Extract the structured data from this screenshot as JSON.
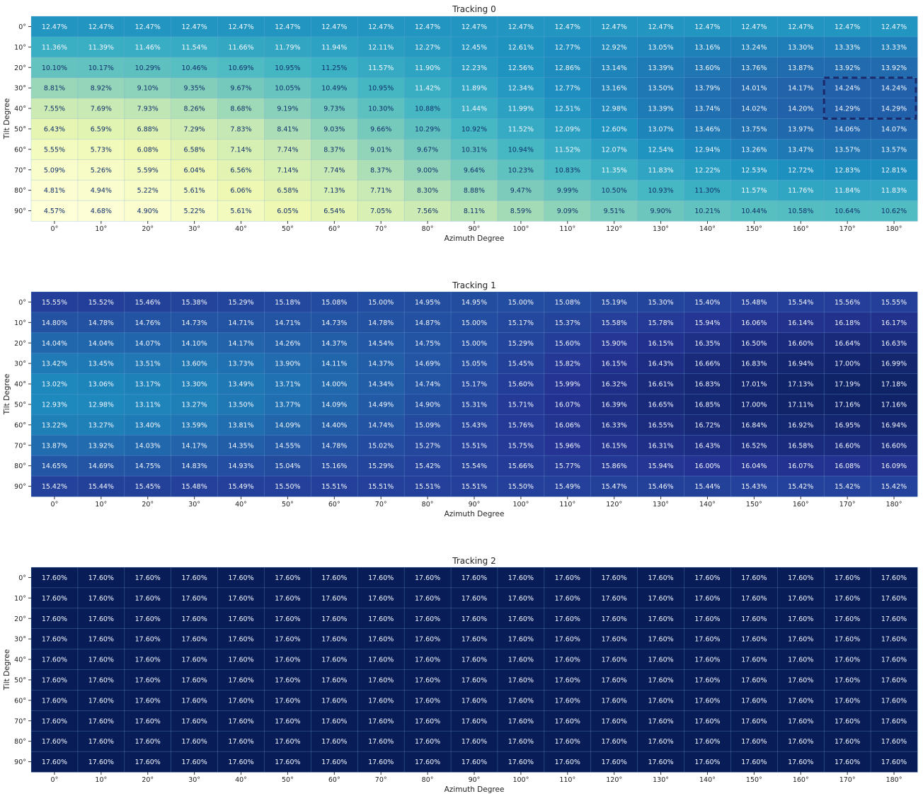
{
  "figure": {
    "x_ticks": [
      "0°",
      "10°",
      "20°",
      "30°",
      "40°",
      "50°",
      "60°",
      "70°",
      "80°",
      "90°",
      "100°",
      "110°",
      "120°",
      "130°",
      "140°",
      "150°",
      "160°",
      "170°",
      "180°"
    ],
    "y_ticks": [
      "0°",
      "10°",
      "20°",
      "30°",
      "40°",
      "50°",
      "60°",
      "70°",
      "80°",
      "90°"
    ]
  },
  "chart_data": [
    {
      "type": "heatmap",
      "title": "Tracking 0",
      "xlabel": "Azimuth Degree",
      "ylabel": "Tilt Degree",
      "unit": "%",
      "colormap": "YlGnBu",
      "color_range": [
        4.5,
        17.6
      ],
      "highlight": {
        "rows": [
          "30°",
          "40°"
        ],
        "cols": [
          "170°",
          "180°"
        ],
        "style": "dashed"
      },
      "x": [
        "0°",
        "10°",
        "20°",
        "30°",
        "40°",
        "50°",
        "60°",
        "70°",
        "80°",
        "90°",
        "100°",
        "110°",
        "120°",
        "130°",
        "140°",
        "150°",
        "160°",
        "170°",
        "180°"
      ],
      "y": [
        "0°",
        "10°",
        "20°",
        "30°",
        "40°",
        "50°",
        "60°",
        "70°",
        "80°",
        "90°"
      ],
      "values": [
        [
          12.47,
          12.47,
          12.47,
          12.47,
          12.47,
          12.47,
          12.47,
          12.47,
          12.47,
          12.47,
          12.47,
          12.47,
          12.47,
          12.47,
          12.47,
          12.47,
          12.47,
          12.47,
          12.47
        ],
        [
          11.36,
          11.39,
          11.46,
          11.54,
          11.66,
          11.79,
          11.94,
          12.11,
          12.27,
          12.45,
          12.61,
          12.77,
          12.92,
          13.05,
          13.16,
          13.24,
          13.3,
          13.33,
          13.33
        ],
        [
          10.1,
          10.17,
          10.29,
          10.46,
          10.69,
          10.95,
          11.25,
          11.57,
          11.9,
          12.23,
          12.56,
          12.86,
          13.14,
          13.39,
          13.6,
          13.76,
          13.87,
          13.92,
          13.92
        ],
        [
          8.81,
          8.92,
          9.1,
          9.35,
          9.67,
          10.05,
          10.49,
          10.95,
          11.42,
          11.89,
          12.34,
          12.77,
          13.16,
          13.5,
          13.79,
          14.01,
          14.17,
          14.24,
          14.24
        ],
        [
          7.55,
          7.69,
          7.93,
          8.26,
          8.68,
          9.19,
          9.73,
          10.3,
          10.88,
          11.44,
          11.99,
          12.51,
          12.98,
          13.39,
          13.74,
          14.02,
          14.2,
          14.29,
          14.29
        ],
        [
          6.43,
          6.59,
          6.88,
          7.29,
          7.83,
          8.41,
          9.03,
          9.66,
          10.29,
          10.92,
          11.52,
          12.09,
          12.6,
          13.07,
          13.46,
          13.75,
          13.97,
          14.06,
          14.07
        ],
        [
          5.55,
          5.73,
          6.08,
          6.58,
          7.14,
          7.74,
          8.37,
          9.01,
          9.67,
          10.31,
          10.94,
          11.52,
          12.07,
          12.54,
          12.94,
          13.26,
          13.47,
          13.57,
          13.57
        ],
        [
          5.09,
          5.26,
          5.59,
          6.04,
          6.56,
          7.14,
          7.74,
          8.37,
          9.0,
          9.64,
          10.23,
          10.83,
          11.35,
          11.83,
          12.22,
          12.53,
          12.72,
          12.83,
          12.81
        ],
        [
          4.81,
          4.94,
          5.22,
          5.61,
          6.06,
          6.58,
          7.13,
          7.71,
          8.3,
          8.88,
          9.47,
          9.99,
          10.5,
          10.93,
          11.3,
          11.57,
          11.76,
          11.84,
          11.83
        ],
        [
          4.57,
          4.68,
          4.9,
          5.22,
          5.61,
          6.05,
          6.54,
          7.05,
          7.56,
          8.11,
          8.59,
          9.09,
          9.51,
          9.9,
          10.21,
          10.44,
          10.58,
          10.64,
          10.62
        ]
      ]
    },
    {
      "type": "heatmap",
      "title": "Tracking 1",
      "xlabel": "Azimuth Degree",
      "ylabel": "Tilt Degree",
      "unit": "%",
      "colormap": "YlGnBu",
      "color_range": [
        4.5,
        17.6
      ],
      "x": [
        "0°",
        "10°",
        "20°",
        "30°",
        "40°",
        "50°",
        "60°",
        "70°",
        "80°",
        "90°",
        "100°",
        "110°",
        "120°",
        "130°",
        "140°",
        "150°",
        "160°",
        "170°",
        "180°"
      ],
      "y": [
        "0°",
        "10°",
        "20°",
        "30°",
        "40°",
        "50°",
        "60°",
        "70°",
        "80°",
        "90°"
      ],
      "values": [
        [
          15.55,
          15.52,
          15.46,
          15.38,
          15.29,
          15.18,
          15.08,
          15.0,
          14.95,
          14.95,
          15.0,
          15.08,
          15.19,
          15.3,
          15.4,
          15.48,
          15.54,
          15.56,
          15.55
        ],
        [
          14.8,
          14.78,
          14.76,
          14.73,
          14.71,
          14.71,
          14.73,
          14.78,
          14.87,
          15.0,
          15.17,
          15.37,
          15.58,
          15.78,
          15.94,
          16.06,
          16.14,
          16.18,
          16.17
        ],
        [
          14.04,
          14.04,
          14.07,
          14.1,
          14.17,
          14.26,
          14.37,
          14.54,
          14.75,
          15.0,
          15.29,
          15.6,
          15.9,
          16.15,
          16.35,
          16.5,
          16.6,
          16.64,
          16.63
        ],
        [
          13.42,
          13.45,
          13.51,
          13.6,
          13.73,
          13.9,
          14.11,
          14.37,
          14.69,
          15.05,
          15.45,
          15.82,
          16.15,
          16.43,
          16.66,
          16.83,
          16.94,
          17.0,
          16.99
        ],
        [
          13.02,
          13.06,
          13.17,
          13.3,
          13.49,
          13.71,
          14.0,
          14.34,
          14.74,
          15.17,
          15.6,
          15.99,
          16.32,
          16.61,
          16.83,
          17.01,
          17.13,
          17.19,
          17.18
        ],
        [
          12.93,
          12.98,
          13.11,
          13.27,
          13.5,
          13.77,
          14.09,
          14.49,
          14.9,
          15.31,
          15.71,
          16.07,
          16.39,
          16.65,
          16.85,
          17.0,
          17.11,
          17.16,
          17.16
        ],
        [
          13.22,
          13.27,
          13.4,
          13.59,
          13.81,
          14.09,
          14.4,
          14.74,
          15.09,
          15.43,
          15.76,
          16.06,
          16.33,
          16.55,
          16.72,
          16.84,
          16.92,
          16.95,
          16.94
        ],
        [
          13.87,
          13.92,
          14.03,
          14.17,
          14.35,
          14.55,
          14.78,
          15.02,
          15.27,
          15.51,
          15.75,
          15.96,
          16.15,
          16.31,
          16.43,
          16.52,
          16.58,
          16.6,
          16.6
        ],
        [
          14.65,
          14.69,
          14.75,
          14.83,
          14.93,
          15.04,
          15.16,
          15.29,
          15.42,
          15.54,
          15.66,
          15.77,
          15.86,
          15.94,
          16.0,
          16.04,
          16.07,
          16.08,
          16.09
        ],
        [
          15.42,
          15.44,
          15.45,
          15.48,
          15.49,
          15.5,
          15.51,
          15.51,
          15.51,
          15.51,
          15.5,
          15.49,
          15.47,
          15.46,
          15.44,
          15.43,
          15.42,
          15.42,
          15.42
        ]
      ]
    },
    {
      "type": "heatmap",
      "title": "Tracking 2",
      "xlabel": "Azimuth Degree",
      "ylabel": "Tilt Degree",
      "unit": "%",
      "colormap": "YlGnBu",
      "color_range": [
        4.5,
        17.6
      ],
      "x": [
        "0°",
        "10°",
        "20°",
        "30°",
        "40°",
        "50°",
        "60°",
        "70°",
        "80°",
        "90°",
        "100°",
        "110°",
        "120°",
        "130°",
        "140°",
        "150°",
        "160°",
        "170°",
        "180°"
      ],
      "y": [
        "0°",
        "10°",
        "20°",
        "30°",
        "40°",
        "50°",
        "60°",
        "70°",
        "80°",
        "90°"
      ],
      "uniform_value": 17.6
    }
  ]
}
